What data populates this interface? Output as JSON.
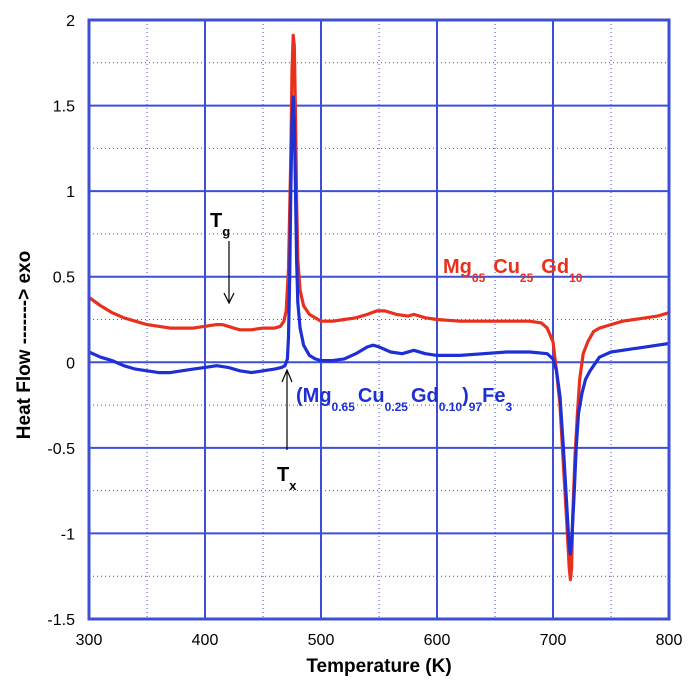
{
  "chart_data": {
    "type": "line",
    "title": "",
    "xlabel": "Temperature (K)",
    "ylabel": "Heat Flow   -------> exo",
    "xlim": [
      300,
      800
    ],
    "ylim": [
      -1.5,
      2
    ],
    "x_ticks": [
      "300",
      "400",
      "500",
      "600",
      "700",
      "800"
    ],
    "y_ticks": [
      "-1.5",
      "-1",
      "-0.5",
      "0",
      "0.5",
      "1",
      "1.5",
      "2"
    ],
    "grid": true,
    "grid_color": "#3c4fd6",
    "series": [
      {
        "name": "Mg65Cu25Gd10",
        "color": "#e8301c",
        "points": [
          [
            300,
            0.38
          ],
          [
            310,
            0.33
          ],
          [
            320,
            0.29
          ],
          [
            330,
            0.26
          ],
          [
            340,
            0.24
          ],
          [
            350,
            0.22
          ],
          [
            360,
            0.21
          ],
          [
            370,
            0.2
          ],
          [
            380,
            0.2
          ],
          [
            390,
            0.2
          ],
          [
            400,
            0.21
          ],
          [
            410,
            0.22
          ],
          [
            415,
            0.22
          ],
          [
            420,
            0.21
          ],
          [
            425,
            0.2
          ],
          [
            430,
            0.19
          ],
          [
            440,
            0.19
          ],
          [
            450,
            0.2
          ],
          [
            460,
            0.2
          ],
          [
            465,
            0.21
          ],
          [
            468,
            0.24
          ],
          [
            470,
            0.3
          ],
          [
            472,
            0.55
          ],
          [
            474,
            1.2
          ],
          [
            475,
            1.7
          ],
          [
            476,
            1.91
          ],
          [
            477,
            1.85
          ],
          [
            478,
            1.45
          ],
          [
            479,
            0.95
          ],
          [
            480,
            0.6
          ],
          [
            482,
            0.42
          ],
          [
            485,
            0.33
          ],
          [
            490,
            0.28
          ],
          [
            495,
            0.26
          ],
          [
            500,
            0.24
          ],
          [
            510,
            0.24
          ],
          [
            520,
            0.25
          ],
          [
            530,
            0.26
          ],
          [
            540,
            0.28
          ],
          [
            548,
            0.3
          ],
          [
            555,
            0.3
          ],
          [
            565,
            0.28
          ],
          [
            575,
            0.27
          ],
          [
            580,
            0.28
          ],
          [
            590,
            0.26
          ],
          [
            600,
            0.25
          ],
          [
            620,
            0.24
          ],
          [
            640,
            0.24
          ],
          [
            660,
            0.24
          ],
          [
            680,
            0.24
          ],
          [
            690,
            0.23
          ],
          [
            695,
            0.2
          ],
          [
            700,
            0.12
          ],
          [
            703,
            -0.05
          ],
          [
            706,
            -0.25
          ],
          [
            709,
            -0.6
          ],
          [
            712,
            -0.95
          ],
          [
            714,
            -1.2
          ],
          [
            715,
            -1.27
          ],
          [
            716,
            -1.2
          ],
          [
            717,
            -0.9
          ],
          [
            719,
            -0.55
          ],
          [
            721,
            -0.3
          ],
          [
            723,
            -0.1
          ],
          [
            726,
            0.05
          ],
          [
            730,
            0.12
          ],
          [
            735,
            0.18
          ],
          [
            740,
            0.2
          ],
          [
            750,
            0.22
          ],
          [
            760,
            0.24
          ],
          [
            770,
            0.25
          ],
          [
            780,
            0.26
          ],
          [
            790,
            0.27
          ],
          [
            800,
            0.29
          ]
        ]
      },
      {
        "name": "(Mg0.65Cu0.25Gd0.10)97Fe3",
        "color": "#1e2fd4",
        "points": [
          [
            300,
            0.06
          ],
          [
            310,
            0.03
          ],
          [
            320,
            0.01
          ],
          [
            330,
            -0.02
          ],
          [
            340,
            -0.04
          ],
          [
            350,
            -0.05
          ],
          [
            360,
            -0.06
          ],
          [
            370,
            -0.06
          ],
          [
            380,
            -0.05
          ],
          [
            390,
            -0.04
          ],
          [
            400,
            -0.03
          ],
          [
            410,
            -0.02
          ],
          [
            420,
            -0.03
          ],
          [
            430,
            -0.05
          ],
          [
            440,
            -0.06
          ],
          [
            450,
            -0.05
          ],
          [
            460,
            -0.04
          ],
          [
            466,
            -0.03
          ],
          [
            469,
            -0.02
          ],
          [
            471,
            0.02
          ],
          [
            472,
            0.15
          ],
          [
            473,
            0.5
          ],
          [
            474,
            1.0
          ],
          [
            475,
            1.4
          ],
          [
            476,
            1.55
          ],
          [
            477,
            1.4
          ],
          [
            478,
            1.0
          ],
          [
            479,
            0.6
          ],
          [
            480,
            0.35
          ],
          [
            482,
            0.2
          ],
          [
            485,
            0.1
          ],
          [
            490,
            0.04
          ],
          [
            495,
            0.02
          ],
          [
            500,
            0.01
          ],
          [
            510,
            0.01
          ],
          [
            520,
            0.02
          ],
          [
            530,
            0.05
          ],
          [
            540,
            0.09
          ],
          [
            545,
            0.1
          ],
          [
            550,
            0.09
          ],
          [
            560,
            0.06
          ],
          [
            570,
            0.05
          ],
          [
            580,
            0.07
          ],
          [
            590,
            0.05
          ],
          [
            600,
            0.04
          ],
          [
            620,
            0.04
          ],
          [
            640,
            0.05
          ],
          [
            660,
            0.06
          ],
          [
            680,
            0.06
          ],
          [
            695,
            0.05
          ],
          [
            700,
            0.02
          ],
          [
            703,
            -0.05
          ],
          [
            706,
            -0.2
          ],
          [
            709,
            -0.5
          ],
          [
            712,
            -0.85
          ],
          [
            714,
            -1.08
          ],
          [
            715,
            -1.12
          ],
          [
            716,
            -1.05
          ],
          [
            718,
            -0.8
          ],
          [
            720,
            -0.5
          ],
          [
            722,
            -0.3
          ],
          [
            725,
            -0.18
          ],
          [
            728,
            -0.1
          ],
          [
            732,
            -0.05
          ],
          [
            737,
            0.0
          ],
          [
            740,
            0.03
          ],
          [
            750,
            0.06
          ],
          [
            760,
            0.07
          ],
          [
            770,
            0.08
          ],
          [
            780,
            0.09
          ],
          [
            790,
            0.1
          ],
          [
            800,
            0.11
          ]
        ]
      }
    ],
    "annotations": {
      "tg_label": "T",
      "tg_sub": "g",
      "tx_label": "T",
      "tx_sub": "x",
      "red_label": {
        "p1": "Mg",
        "s1": "65",
        "p2": "Cu",
        "s2": "25",
        "p3": "Gd",
        "s3": "10"
      },
      "blue_label": {
        "p1": "(Mg",
        "s1": "0.65",
        "p2": "Cu",
        "s2": "0.25",
        "p3": "Gd",
        "s3": "0.10",
        "p4": ")",
        "s4": "97",
        "p5": "Fe",
        "s5": "3"
      }
    }
  }
}
